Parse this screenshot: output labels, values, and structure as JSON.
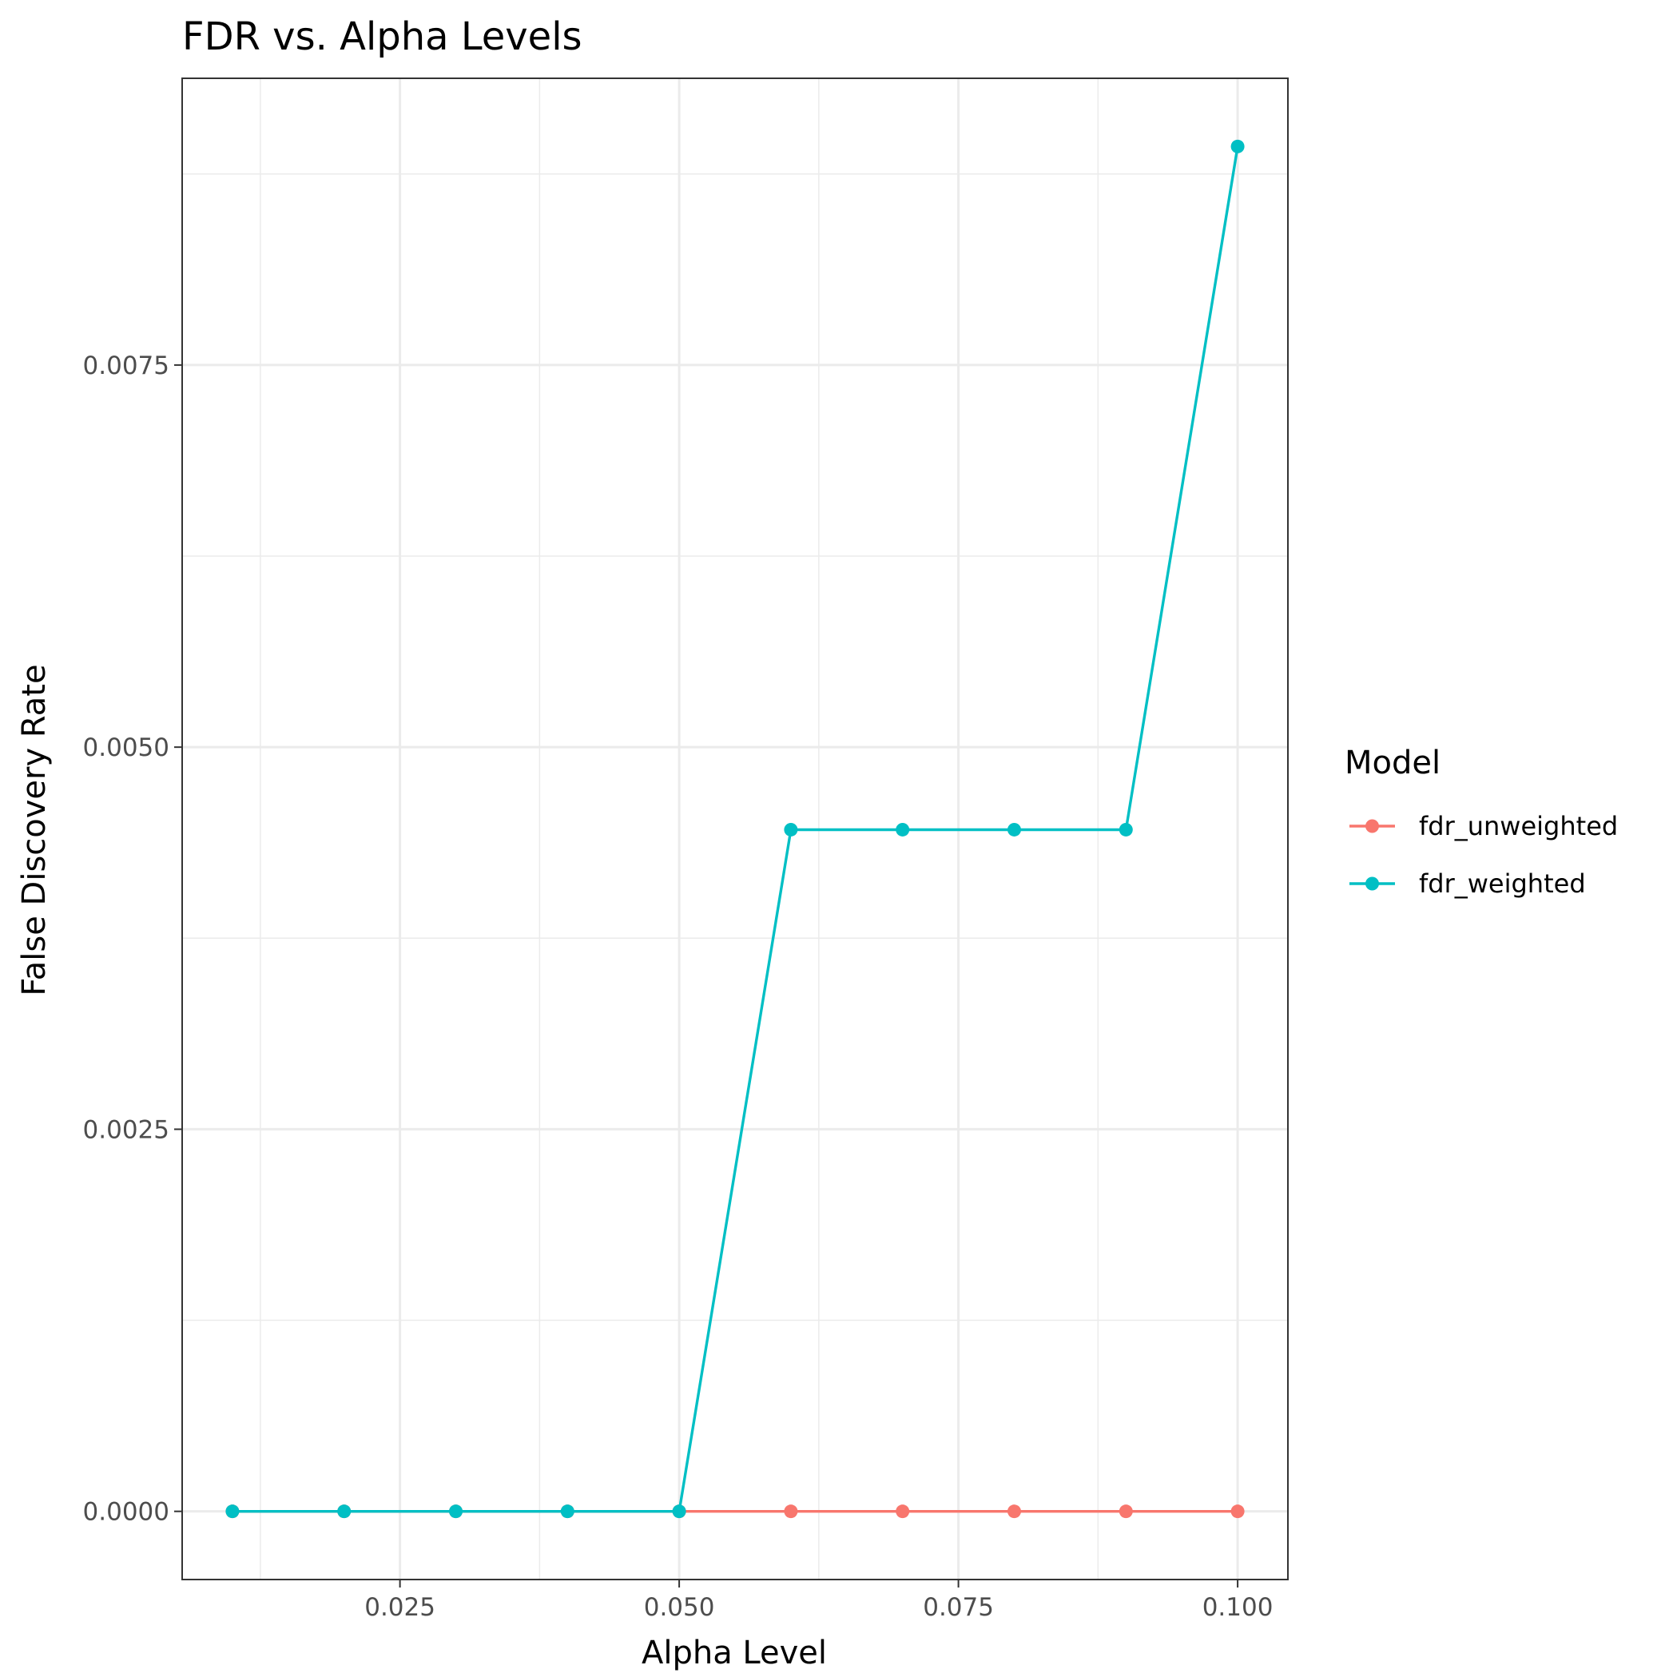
{
  "chart_data": {
    "type": "line",
    "title": "FDR vs. Alpha Levels",
    "xlabel": "Alpha Level",
    "ylabel": "False Discovery Rate",
    "x": [
      0.01,
      0.02,
      0.03,
      0.04,
      0.05,
      0.06,
      0.07,
      0.08,
      0.09,
      0.1
    ],
    "series": [
      {
        "name": "fdr_unweighted",
        "color": "#F8766D",
        "values": [
          0,
          0,
          0,
          0,
          0,
          0,
          0,
          0,
          0,
          0
        ]
      },
      {
        "name": "fdr_weighted",
        "color": "#00BFC4",
        "values": [
          0,
          0,
          0,
          0,
          0,
          0.00446,
          0.00446,
          0.00446,
          0.00446,
          0.00893
        ]
      }
    ],
    "xlim": [
      0.0055,
      0.1045
    ],
    "ylim": [
      -0.000446,
      0.009376
    ],
    "xticks": [
      0.025,
      0.05,
      0.075,
      0.1
    ],
    "xtick_labels": [
      "0.025",
      "0.050",
      "0.075",
      "0.100"
    ],
    "yticks": [
      0,
      0.0025,
      0.005,
      0.0075
    ],
    "ytick_labels": [
      "0.0000",
      "0.0025",
      "0.0050",
      "0.0075"
    ],
    "grid": true,
    "legend": {
      "title": "Model",
      "position": "right"
    }
  }
}
